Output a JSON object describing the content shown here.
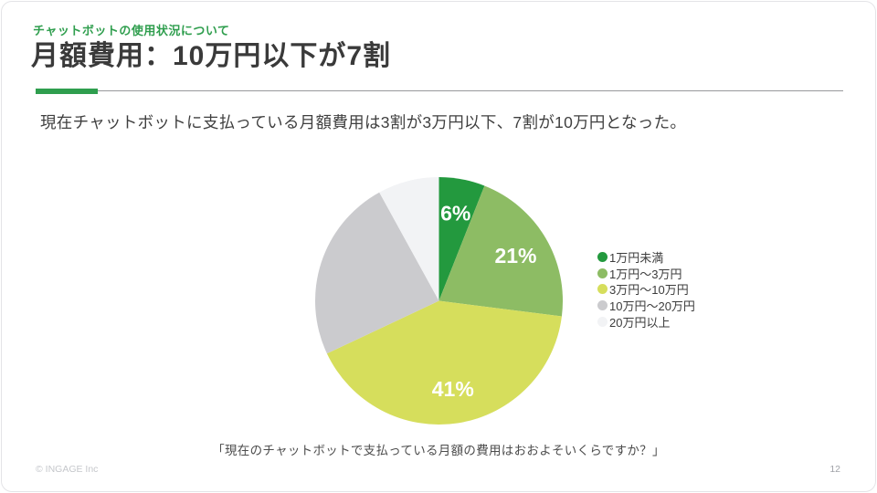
{
  "slide": {
    "kicker": "チャットボットの使用状況について",
    "title": "月額費用：10万円以下が7割",
    "description": "現在チャットボットに支払っている月額費用は3割が3万円以下、7割が10万円となった。",
    "caption": "「現在のチャットボットで支払っている月額の費用はおおよそいくらですか？」",
    "copyright": "© INGAGE Inc",
    "page_number": "12"
  },
  "colors": {
    "accent_green": "#2f9e4e",
    "title_text": "#3a3a3a",
    "body_text": "#3f3f3f",
    "legend_text": "#3c3c3c",
    "caption_text": "#4d4d4d",
    "divider_line": "#97999c",
    "footer_text": "#c5c7cb",
    "page_number_text": "#a0a2a8",
    "slide_border": "#e4e4e7"
  },
  "chart_data": {
    "type": "pie",
    "title": "",
    "start_angle": "top",
    "direction": "clockwise",
    "value_suffix": "%",
    "legend_position": "right",
    "slices": [
      {
        "label": "1万円未満",
        "value": 6,
        "color": "#23993e",
        "value_label_visible": true
      },
      {
        "label": "1万円〜3万円",
        "value": 21,
        "color": "#8dbc64",
        "value_label_visible": true
      },
      {
        "label": "3万円〜10万円",
        "value": 41,
        "color": "#d6de5c",
        "value_label_visible": true
      },
      {
        "label": "10万円〜20万円",
        "value": 24,
        "color": "#cbcbce",
        "value_label_visible": false
      },
      {
        "label": "20万円以上",
        "value": 8,
        "color": "#f2f3f5",
        "value_label_visible": false
      }
    ]
  }
}
